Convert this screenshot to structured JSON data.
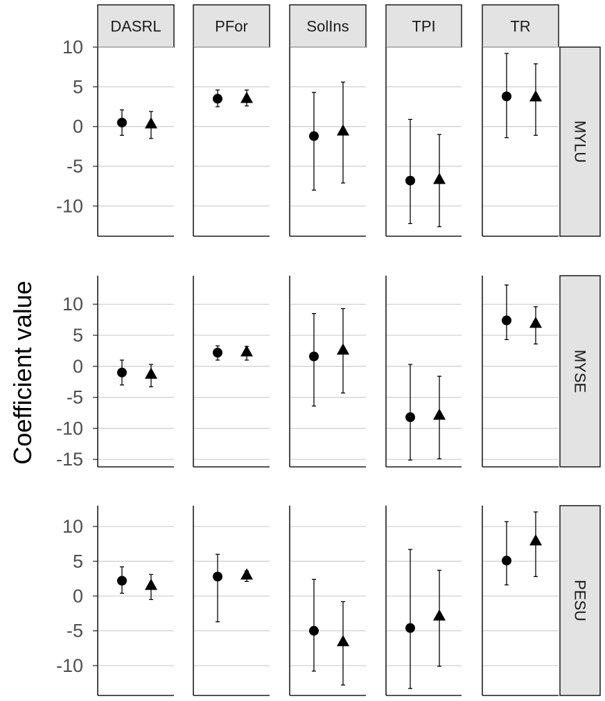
{
  "chart_data": {
    "type": "scatter",
    "ylabel": "Coefficient value",
    "columns": [
      "DASRL",
      "PFor",
      "SolIns",
      "TPI",
      "TR"
    ],
    "rows": [
      {
        "name": "MYLU",
        "yticks": [
          10,
          5,
          0,
          -5,
          -10
        ],
        "ylim": [
          -13.8,
          10
        ],
        "panels": {
          "DASRL": [
            {
              "marker": "circle",
              "y": 0.5,
              "lo": -1.1,
              "hi": 2.1
            },
            {
              "marker": "triangle",
              "y": 0.4,
              "lo": -1.5,
              "hi": 1.9
            }
          ],
          "PFor": [
            {
              "marker": "circle",
              "y": 3.5,
              "lo": 2.5,
              "hi": 4.6
            },
            {
              "marker": "triangle",
              "y": 3.6,
              "lo": 2.6,
              "hi": 4.6
            }
          ],
          "SolIns": [
            {
              "marker": "circle",
              "y": -1.2,
              "lo": -8.0,
              "hi": 4.3
            },
            {
              "marker": "triangle",
              "y": -0.5,
              "lo": -7.1,
              "hi": 5.6
            }
          ],
          "TPI": [
            {
              "marker": "circle",
              "y": -6.8,
              "lo": -12.2,
              "hi": 0.9
            },
            {
              "marker": "triangle",
              "y": -6.6,
              "lo": -12.6,
              "hi": -1.0
            }
          ],
          "TR": [
            {
              "marker": "circle",
              "y": 3.8,
              "lo": -1.4,
              "hi": 9.2
            },
            {
              "marker": "triangle",
              "y": 3.8,
              "lo": -1.1,
              "hi": 7.9
            }
          ]
        }
      },
      {
        "name": "MYSE",
        "yticks": [
          10,
          5,
          0,
          -5,
          -10,
          -15
        ],
        "ylim": [
          -16.2,
          14.6
        ],
        "panels": {
          "DASRL": [
            {
              "marker": "circle",
              "y": -1.0,
              "lo": -3.0,
              "hi": 1.0
            },
            {
              "marker": "triangle",
              "y": -1.2,
              "lo": -3.3,
              "hi": 0.3
            }
          ],
          "PFor": [
            {
              "marker": "circle",
              "y": 2.2,
              "lo": 1.0,
              "hi": 3.3
            },
            {
              "marker": "triangle",
              "y": 2.4,
              "lo": 1.0,
              "hi": 3.2
            }
          ],
          "SolIns": [
            {
              "marker": "circle",
              "y": 1.6,
              "lo": -6.4,
              "hi": 8.5
            },
            {
              "marker": "triangle",
              "y": 2.7,
              "lo": -4.3,
              "hi": 9.3
            }
          ],
          "TPI": [
            {
              "marker": "circle",
              "y": -8.2,
              "lo": -15.1,
              "hi": 0.3
            },
            {
              "marker": "triangle",
              "y": -7.8,
              "lo": -14.9,
              "hi": -1.6
            }
          ],
          "TR": [
            {
              "marker": "circle",
              "y": 7.4,
              "lo": 4.3,
              "hi": 13.1
            },
            {
              "marker": "triangle",
              "y": 7.0,
              "lo": 3.6,
              "hi": 9.6
            }
          ]
        }
      },
      {
        "name": "PESU",
        "yticks": [
          10,
          5,
          0,
          -5,
          -10
        ],
        "ylim": [
          -14.3,
          13.0
        ],
        "panels": {
          "DASRL": [
            {
              "marker": "circle",
              "y": 2.2,
              "lo": 0.4,
              "hi": 4.2
            },
            {
              "marker": "triangle",
              "y": 1.6,
              "lo": -0.5,
              "hi": 3.1
            }
          ],
          "PFor": [
            {
              "marker": "circle",
              "y": 2.8,
              "lo": -3.7,
              "hi": 6.0
            },
            {
              "marker": "triangle",
              "y": 3.1,
              "lo": 2.1,
              "hi": 3.6
            }
          ],
          "SolIns": [
            {
              "marker": "circle",
              "y": -5.0,
              "lo": -10.8,
              "hi": 2.4
            },
            {
              "marker": "triangle",
              "y": -6.5,
              "lo": -12.8,
              "hi": -0.8
            }
          ],
          "TPI": [
            {
              "marker": "circle",
              "y": -4.6,
              "lo": -13.3,
              "hi": 6.7
            },
            {
              "marker": "triangle",
              "y": -2.8,
              "lo": -10.1,
              "hi": 3.7
            }
          ],
          "TR": [
            {
              "marker": "circle",
              "y": 5.1,
              "lo": 1.6,
              "hi": 10.7
            },
            {
              "marker": "triangle",
              "y": 8.0,
              "lo": 2.8,
              "hi": 12.1
            }
          ]
        }
      }
    ]
  }
}
